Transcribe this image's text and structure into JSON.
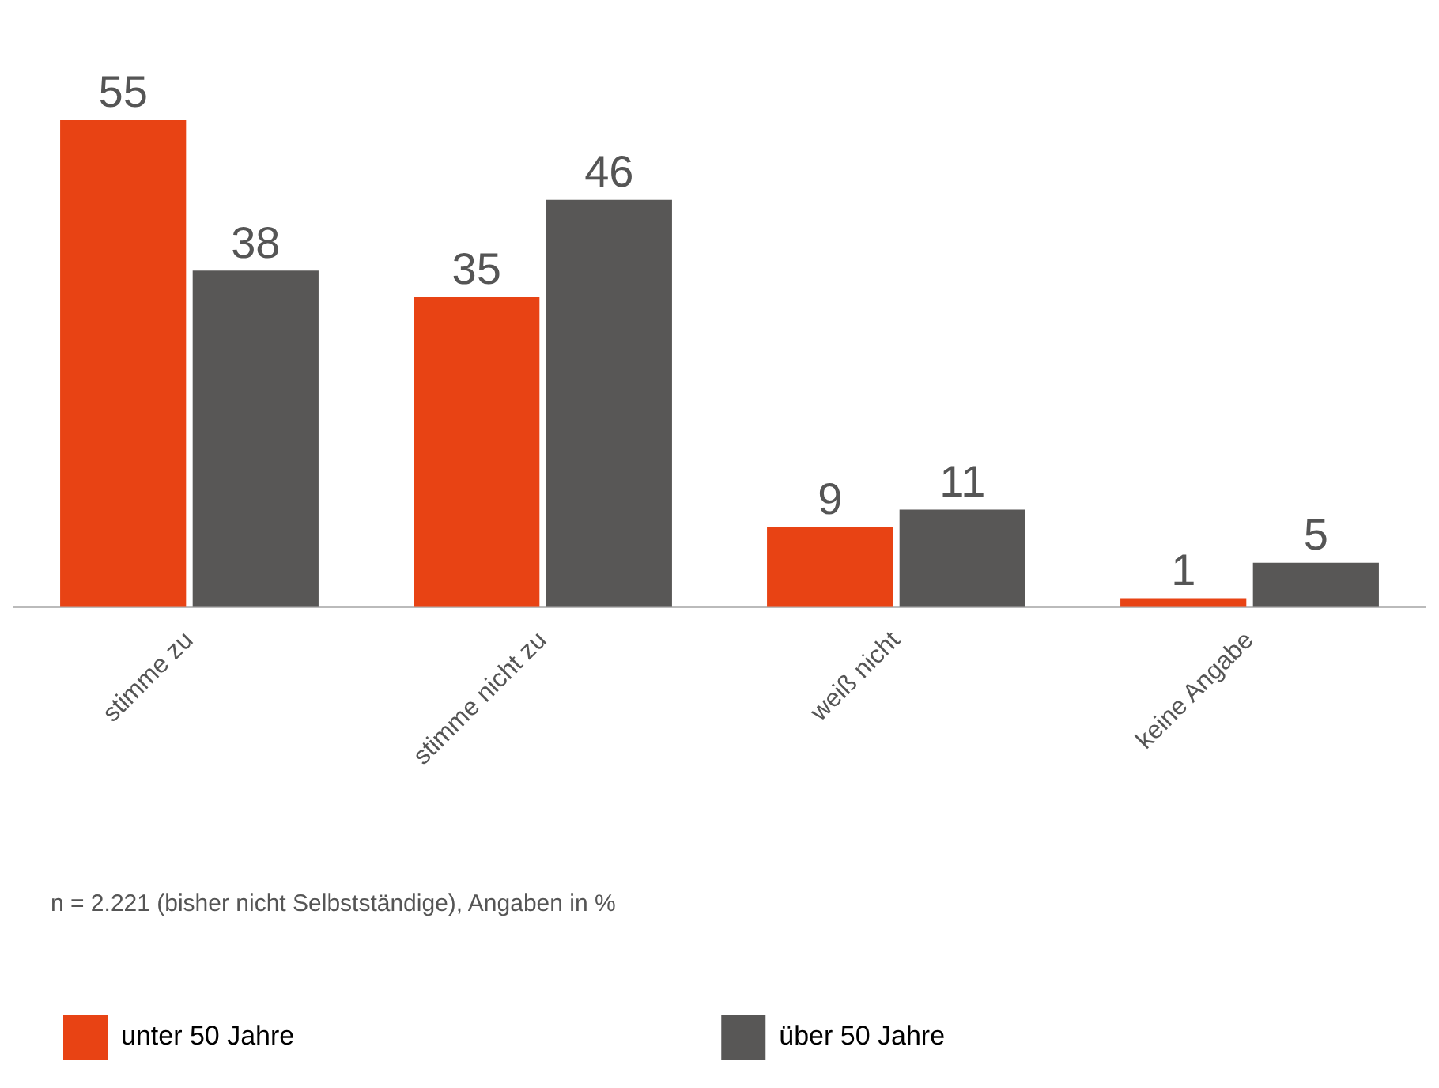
{
  "chart_data": {
    "type": "bar",
    "categories": [
      "stimme zu",
      "stimme nicht zu",
      "weiß nicht",
      "keine Angabe"
    ],
    "series": [
      {
        "name": "unter 50 Jahre",
        "color": "#e84314",
        "values": [
          55,
          35,
          9,
          1
        ]
      },
      {
        "name": "über 50 Jahre",
        "color": "#585756",
        "values": [
          38,
          46,
          11,
          5
        ]
      }
    ],
    "data_labels": true,
    "grid": false,
    "legend": "bottom",
    "tick_labels": "x",
    "annotations": [
      "n = 2.221 (bisher nicht Selbstständige), Angaben in %"
    ]
  }
}
